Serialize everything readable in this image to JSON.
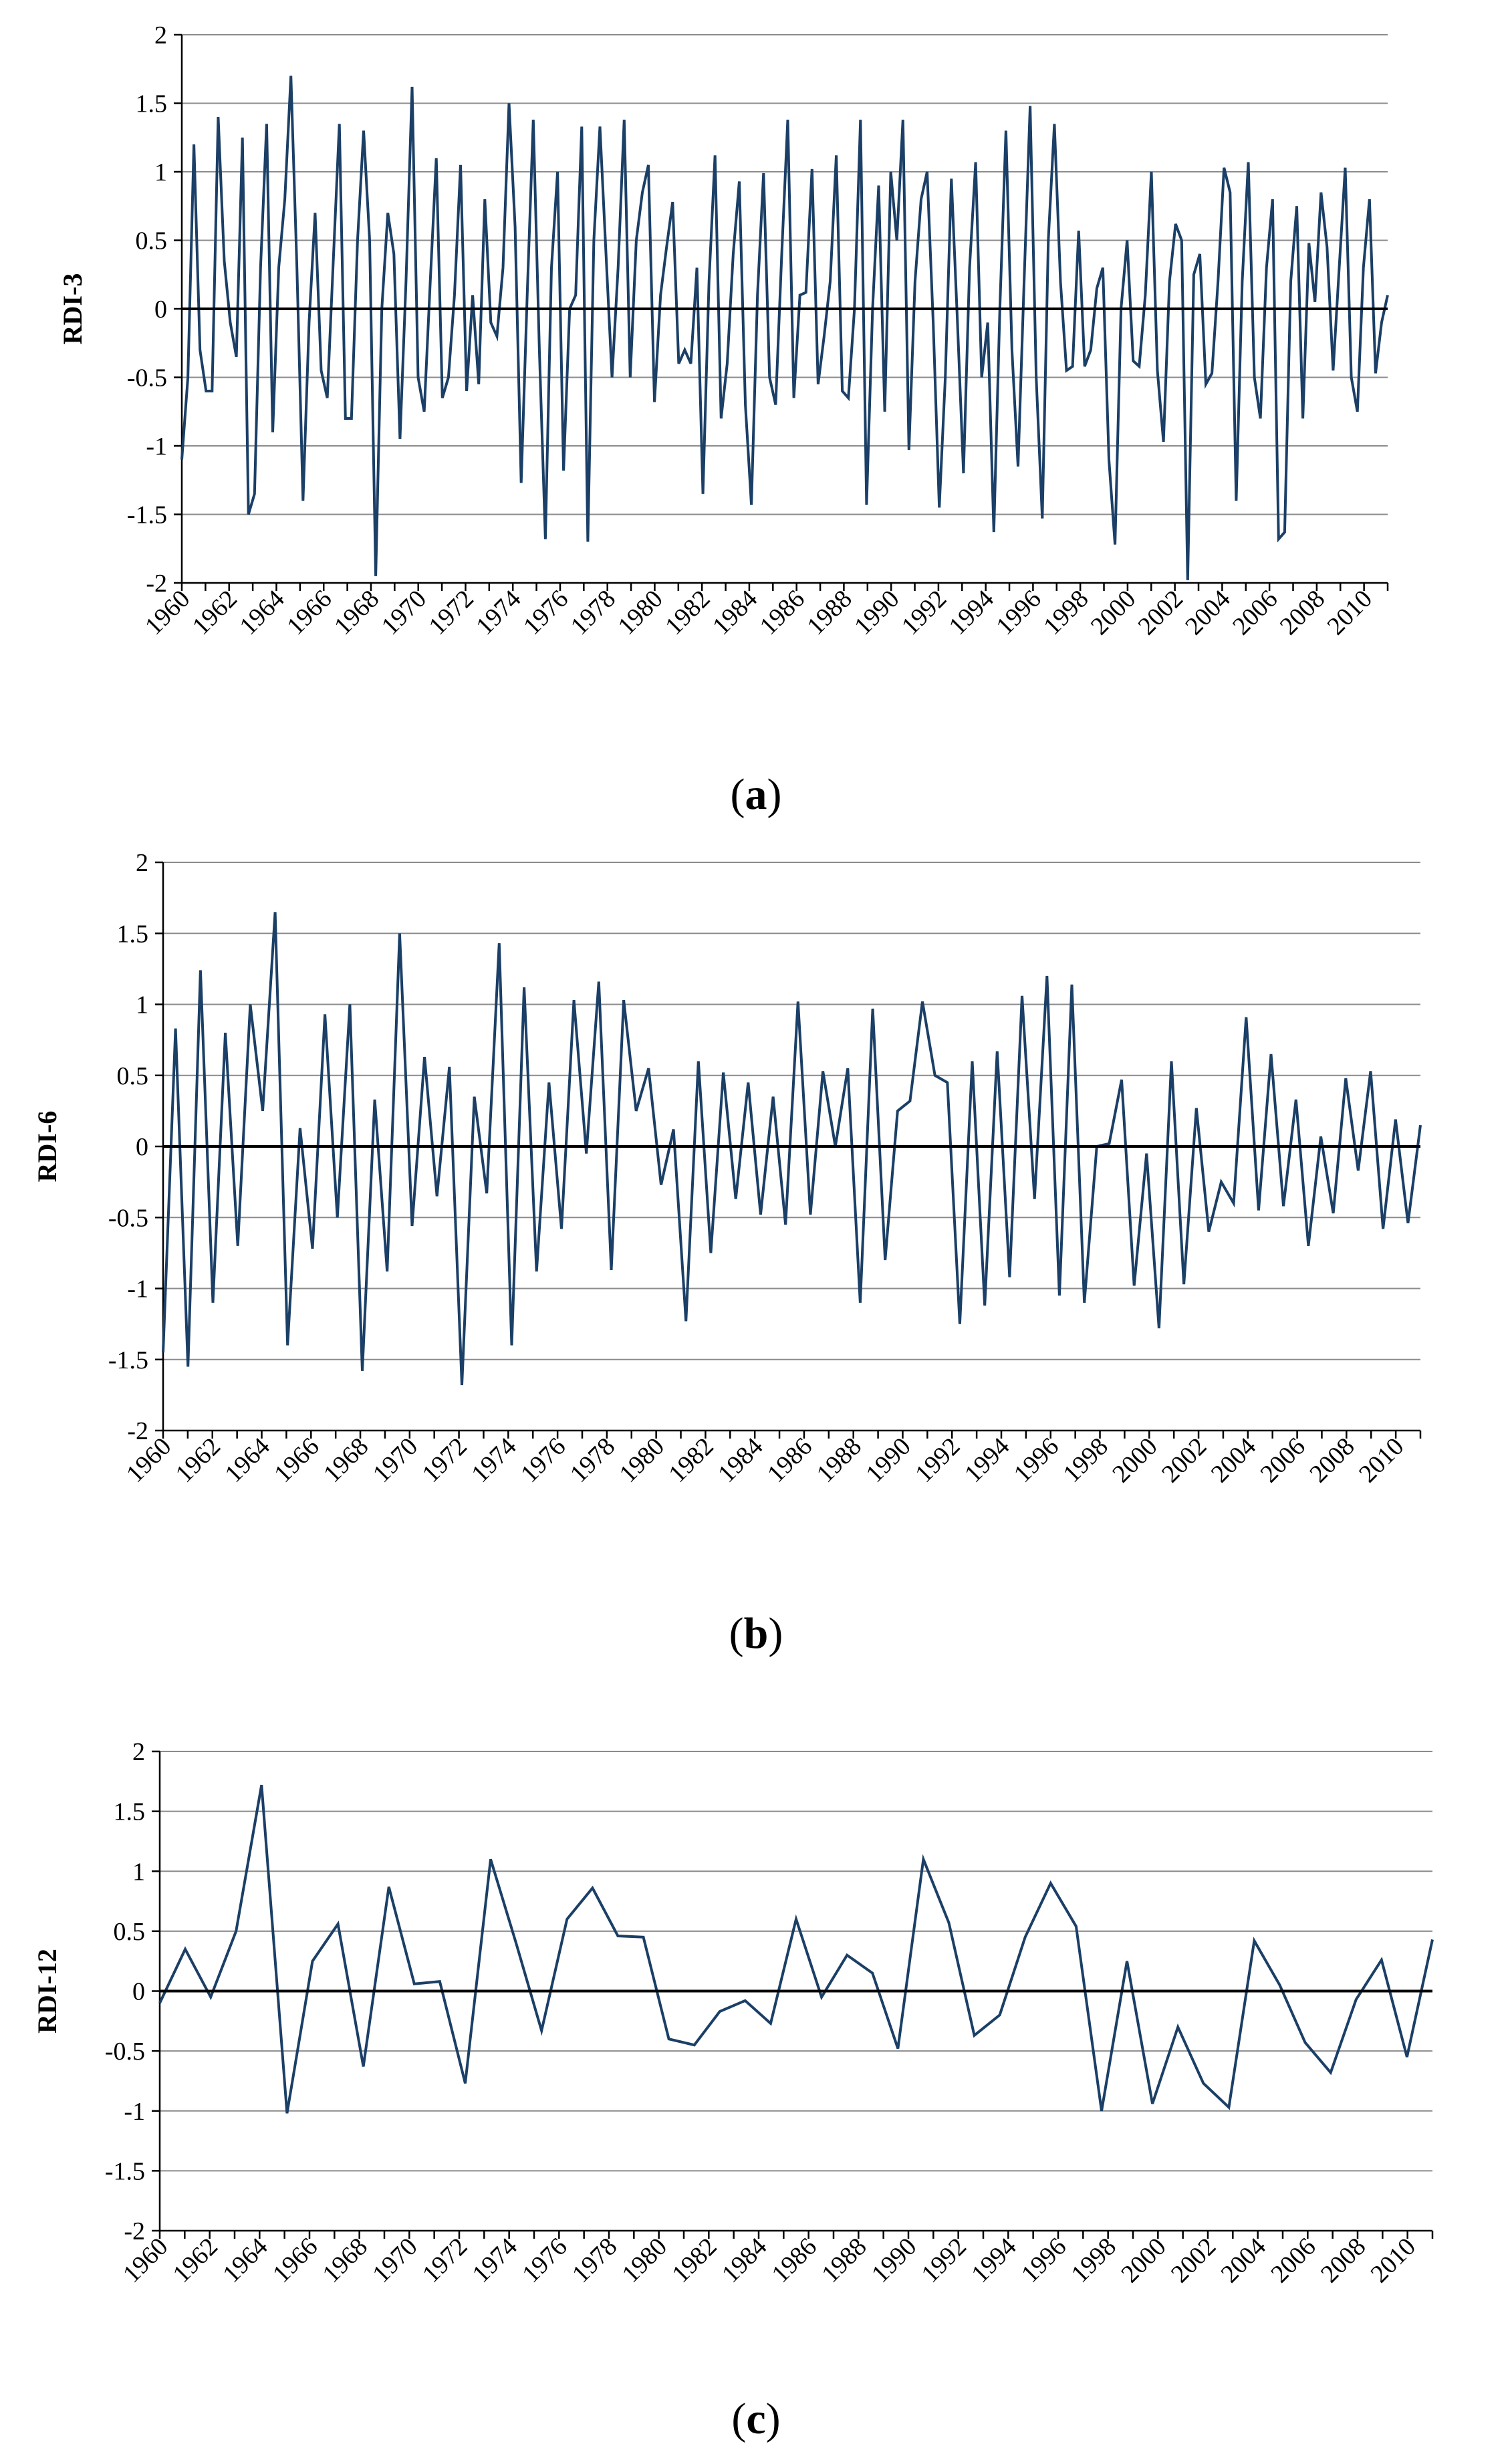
{
  "chart_data": [
    {
      "type": "line",
      "panel": "a",
      "caption_open": "(",
      "caption_letter": "a",
      "caption_close": ")",
      "ylabel": "RDI-3",
      "xlabel": "",
      "ylim": [
        -2,
        2
      ],
      "yticks": [
        2,
        1.5,
        1,
        0.5,
        0,
        -0.5,
        -1,
        -1.5,
        -2
      ],
      "ytick_labels": [
        "2",
        "1.5",
        "1",
        "0.5",
        "0",
        "-0.5",
        "-1",
        "-1.5",
        "-2"
      ],
      "x_start": 1960,
      "x_end": 2011,
      "xtick_labels": [
        "1960",
        "1962",
        "1964",
        "1966",
        "1968",
        "1970",
        "1972",
        "1974",
        "1976",
        "1978",
        "1980",
        "1982",
        "1984",
        "1986",
        "1988",
        "1990",
        "1992",
        "1994",
        "1996",
        "1998",
        "2000",
        "2002",
        "2004",
        "2006",
        "2008",
        "2010"
      ],
      "series_color": "#1b3f66",
      "values": [
        -1.1,
        -0.5,
        1.2,
        -0.3,
        -0.6,
        -0.6,
        1.4,
        0.35,
        -0.1,
        -0.35,
        1.25,
        -1.5,
        -1.35,
        0.3,
        1.35,
        -0.9,
        0.3,
        0.8,
        1.7,
        0.3,
        -1.4,
        -0.1,
        0.7,
        -0.45,
        -0.65,
        0.35,
        1.35,
        -0.8,
        -0.8,
        0.5,
        1.3,
        0.5,
        -1.95,
        0.0,
        0.7,
        0.4,
        -0.95,
        0.2,
        1.62,
        -0.5,
        -0.75,
        0.2,
        1.1,
        -0.65,
        -0.5,
        0.1,
        1.05,
        -0.6,
        0.1,
        -0.55,
        0.8,
        -0.1,
        -0.2,
        0.3,
        1.5,
        0.6,
        -1.27,
        0.1,
        1.38,
        -0.3,
        -1.68,
        0.3,
        1.0,
        -1.18,
        0.0,
        0.1,
        1.33,
        -1.7,
        0.5,
        1.33,
        0.4,
        -0.5,
        0.3,
        1.38,
        -0.5,
        0.5,
        0.85,
        1.05,
        -0.68,
        0.1,
        0.45,
        0.78,
        -0.4,
        -0.3,
        -0.4,
        0.3,
        -1.35,
        0.2,
        1.12,
        -0.8,
        -0.4,
        0.4,
        0.93,
        -0.7,
        -1.43,
        0.1,
        0.99,
        -0.5,
        -0.7,
        0.4,
        1.38,
        -0.65,
        0.1,
        0.12,
        1.02,
        -0.55,
        -0.2,
        0.2,
        1.12,
        -0.6,
        -0.65,
        0.0,
        1.38,
        -1.43,
        0.0,
        0.9,
        -0.75,
        1.0,
        0.5,
        1.38,
        -1.03,
        0.2,
        0.8,
        1.0,
        -0.1,
        -1.45,
        -0.5,
        0.95,
        -0.1,
        -1.2,
        0.3,
        1.07,
        -0.5,
        -0.1,
        -1.63,
        0.0,
        1.3,
        -0.3,
        -1.15,
        0.2,
        1.48,
        -0.5,
        -1.53,
        0.5,
        1.35,
        0.2,
        -0.45,
        -0.42,
        0.57,
        -0.42,
        -0.3,
        0.15,
        0.3,
        -1.1,
        -1.72,
        0.0,
        0.5,
        -0.38,
        -0.42,
        0.1,
        1.0,
        -0.45,
        -0.97,
        0.2,
        0.62,
        0.5,
        -1.98,
        0.25,
        0.4,
        -0.55,
        -0.47,
        0.2,
        1.03,
        0.85,
        -1.4,
        0.2,
        1.07,
        -0.5,
        -0.8,
        0.3,
        0.8,
        -1.68,
        -1.63,
        0.2,
        0.75,
        -0.8,
        0.48,
        0.05,
        0.85,
        0.45,
        -0.45,
        0.3,
        1.03,
        -0.5,
        -0.75,
        0.3,
        0.8,
        -0.47,
        -0.1,
        0.1
      ]
    },
    {
      "type": "line",
      "panel": "b",
      "caption_open": "(",
      "caption_letter": "b",
      "caption_close": ")",
      "ylabel": "RDI-6",
      "xlabel": "",
      "ylim": [
        -2,
        2
      ],
      "yticks": [
        2,
        1.5,
        1,
        0.5,
        0,
        -0.5,
        -1,
        -1.5,
        -2
      ],
      "ytick_labels": [
        "2",
        "1.5",
        "1",
        "0.5",
        "0",
        "-0.5",
        "-1",
        "-1.5",
        "-2"
      ],
      "x_start": 1960,
      "x_end": 2011,
      "xtick_labels": [
        "1960",
        "1962",
        "1964",
        "1966",
        "1968",
        "1970",
        "1972",
        "1974",
        "1976",
        "1978",
        "1980",
        "1982",
        "1984",
        "1986",
        "1988",
        "1990",
        "1992",
        "1994",
        "1996",
        "1998",
        "2000",
        "2002",
        "2004",
        "2006",
        "2008",
        "2010"
      ],
      "series_color": "#1b3f66",
      "values": [
        -1.45,
        0.83,
        -1.55,
        1.24,
        -1.1,
        0.8,
        -0.7,
        1.0,
        0.25,
        1.65,
        -1.4,
        0.13,
        -0.72,
        0.93,
        -0.5,
        1.0,
        -1.58,
        0.33,
        -0.88,
        1.5,
        -0.56,
        0.63,
        -0.35,
        0.56,
        -1.68,
        0.35,
        -0.33,
        1.43,
        -1.4,
        1.12,
        -0.88,
        0.45,
        -0.58,
        1.03,
        -0.05,
        1.16,
        -0.87,
        1.03,
        0.25,
        0.55,
        -0.27,
        0.12,
        -1.23,
        0.6,
        -0.75,
        0.52,
        -0.37,
        0.45,
        -0.48,
        0.35,
        -0.55,
        1.02,
        -0.48,
        0.53,
        0.0,
        0.55,
        -1.1,
        0.97,
        -0.8,
        0.25,
        0.32,
        1.02,
        0.5,
        0.45,
        -1.25,
        0.6,
        -1.12,
        0.67,
        -0.92,
        1.06,
        -0.37,
        1.2,
        -1.05,
        1.14,
        -1.1,
        0.0,
        0.02,
        0.47,
        -0.98,
        -0.05,
        -1.28,
        0.6,
        -0.97,
        0.27,
        -0.6,
        -0.25,
        -0.4,
        0.91,
        -0.45,
        0.65,
        -0.42,
        0.33,
        -0.7,
        0.07,
        -0.47,
        0.48,
        -0.17,
        0.53,
        -0.58,
        0.19,
        -0.54,
        0.15
      ]
    },
    {
      "type": "line",
      "panel": "c",
      "caption_open": "(",
      "caption_letter": "c",
      "caption_close": ")",
      "ylabel": "RDI-12",
      "xlabel": "",
      "ylim": [
        -2,
        2
      ],
      "yticks": [
        2,
        1.5,
        1,
        0.5,
        0,
        -0.5,
        -1,
        -1.5,
        -2
      ],
      "ytick_labels": [
        "2",
        "1.5",
        "1",
        "0.5",
        "0",
        "-0.5",
        "-1",
        "-1.5",
        "-2"
      ],
      "x_start": 1960,
      "x_end": 2011,
      "xtick_labels": [
        "1960",
        "1962",
        "1964",
        "1966",
        "1968",
        "1970",
        "1972",
        "1974",
        "1976",
        "1978",
        "1980",
        "1982",
        "1984",
        "1986",
        "1988",
        "1990",
        "1992",
        "1994",
        "1996",
        "1998",
        "2000",
        "2002",
        "2004",
        "2006",
        "2008",
        "2010"
      ],
      "series_color": "#1b3f66",
      "values": [
        -0.1,
        0.35,
        -0.05,
        0.5,
        1.72,
        -1.02,
        0.25,
        0.56,
        -0.63,
        0.87,
        0.06,
        0.08,
        -0.77,
        1.1,
        0.4,
        -0.33,
        0.6,
        0.86,
        0.46,
        0.45,
        -0.4,
        -0.45,
        -0.17,
        -0.08,
        -0.27,
        0.6,
        -0.05,
        0.3,
        0.15,
        -0.48,
        1.1,
        0.57,
        -0.37,
        -0.2,
        0.45,
        0.9,
        0.54,
        -1.0,
        0.25,
        -0.94,
        -0.3,
        -0.77,
        -0.97,
        0.42,
        0.05,
        -0.43,
        -0.68,
        -0.07,
        0.26,
        -0.55,
        0.43
      ]
    }
  ]
}
